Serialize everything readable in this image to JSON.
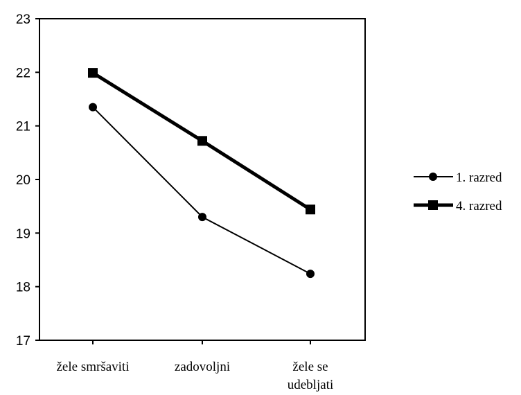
{
  "chart_data": {
    "type": "line",
    "categories": [
      [
        "žele smršaviti"
      ],
      [
        "zadovoljni"
      ],
      [
        "žele se",
        "udebljati"
      ]
    ],
    "ylim": [
      17,
      23
    ],
    "yticks": [
      17,
      18,
      19,
      20,
      21,
      22,
      23
    ],
    "grid": false,
    "legend_position": "right",
    "series": [
      {
        "name": "1. razred",
        "values": [
          21.35,
          19.3,
          18.24
        ],
        "marker": "circle",
        "line": "thin",
        "color": "#000000"
      },
      {
        "name": "4. razred",
        "values": [
          21.99,
          20.72,
          19.44
        ],
        "marker": "square",
        "line": "thick",
        "color": "#000000"
      }
    ]
  }
}
